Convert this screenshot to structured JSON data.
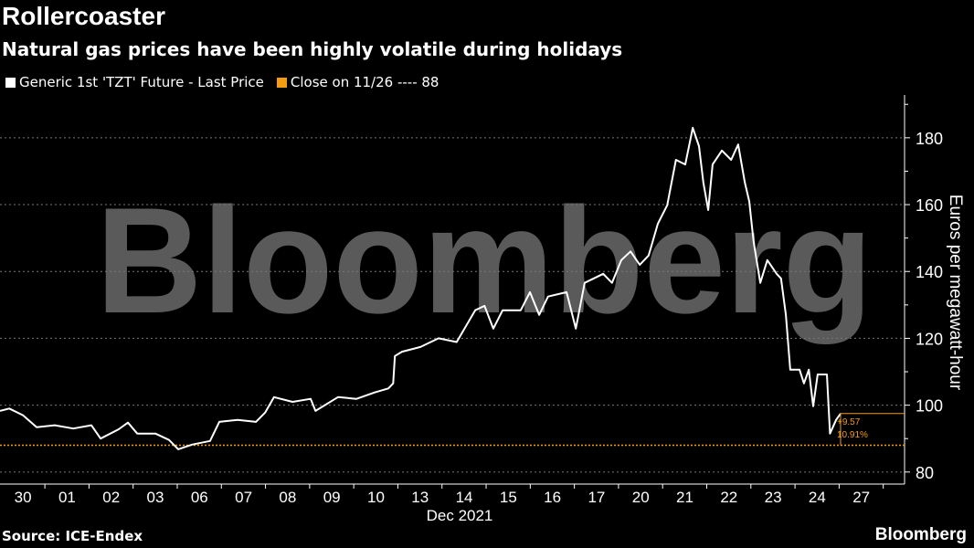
{
  "title": "Rollercoaster",
  "subtitle": "Natural gas prices have been highly volatile during holidays",
  "legend": [
    {
      "label": "Generic 1st 'TZT' Future - Last Price",
      "color": "#ffffff"
    },
    {
      "label": "Close on 11/26 ---- 88",
      "color": "#f39c12"
    }
  ],
  "source": "Source: ICE-Endex",
  "brand": "Bloomberg",
  "watermark": "Bloomberg",
  "chart_data": {
    "type": "line",
    "ylabel": "Euros per megawatt-hour",
    "xlabel": "Dec 2021",
    "ylim": [
      76.4,
      192.8
    ],
    "xlim": [
      -0.52,
      19.98
    ],
    "yticks": [
      80,
      100,
      120,
      140,
      160,
      180
    ],
    "xtick_labels": [
      "30",
      "01",
      "02",
      "03",
      "06",
      "07",
      "08",
      "09",
      "10",
      "13",
      "14",
      "15",
      "16",
      "17",
      "20",
      "21",
      "22",
      "23",
      "24",
      "27"
    ],
    "reference_line": {
      "label": "Close on 11/26",
      "value": 88
    },
    "annotations": {
      "change": "+9.57",
      "pct": "10.91%"
    },
    "series": [
      {
        "name": "Generic 1st 'TZT' Future - Last Price",
        "x": [
          -0.52,
          -0.31,
          0,
          0.31,
          0.72,
          1.14,
          1.55,
          1.76,
          2.17,
          2.38,
          2.59,
          3.0,
          3.31,
          3.52,
          3.83,
          4.24,
          4.45,
          4.87,
          5.28,
          5.49,
          5.69,
          6.11,
          6.52,
          6.63,
          7.14,
          7.56,
          7.97,
          8.28,
          8.39,
          8.43,
          8.59,
          9.01,
          9.42,
          9.83,
          10.25,
          10.46,
          10.66,
          10.87,
          11.28,
          11.49,
          11.7,
          11.9,
          12.32,
          12.53,
          12.73,
          13.15,
          13.35,
          13.56,
          13.77,
          13.98,
          14.18,
          14.39,
          14.6,
          14.8,
          15.01,
          15.18,
          15.32,
          15.42,
          15.53,
          15.63,
          15.84,
          16.05,
          16.21,
          16.36,
          16.46,
          16.56,
          16.71,
          16.87,
          17.08,
          17.18,
          17.29,
          17.39,
          17.6,
          17.7,
          17.81,
          17.91,
          18.01,
          18.22,
          18.29,
          18.43,
          18.53
        ],
        "values": [
          98.3,
          99,
          97,
          93.4,
          94,
          93,
          94,
          90,
          92.8,
          94.8,
          91.5,
          91.5,
          89.6,
          86.8,
          88.2,
          89.3,
          95,
          95.6,
          95,
          97.8,
          102.4,
          101,
          101.9,
          98.3,
          102.4,
          101.9,
          103.8,
          105,
          106.5,
          114.7,
          116,
          117.4,
          120,
          118.9,
          128.4,
          129.7,
          122.9,
          128.4,
          128.4,
          133.8,
          127,
          132.5,
          133.8,
          122.9,
          136.6,
          139.3,
          136.6,
          143.4,
          146,
          142,
          144.8,
          154.3,
          159.8,
          173.4,
          172,
          183,
          177.5,
          166.6,
          158.4,
          172,
          176.2,
          173.4,
          178,
          166.6,
          161,
          148.9,
          136.6,
          143.4,
          139.3,
          137.9,
          127,
          110.6,
          110.6,
          106.5,
          110.6,
          99.7,
          109.2,
          109.2,
          91.5,
          95.6,
          97.5
        ]
      }
    ]
  }
}
